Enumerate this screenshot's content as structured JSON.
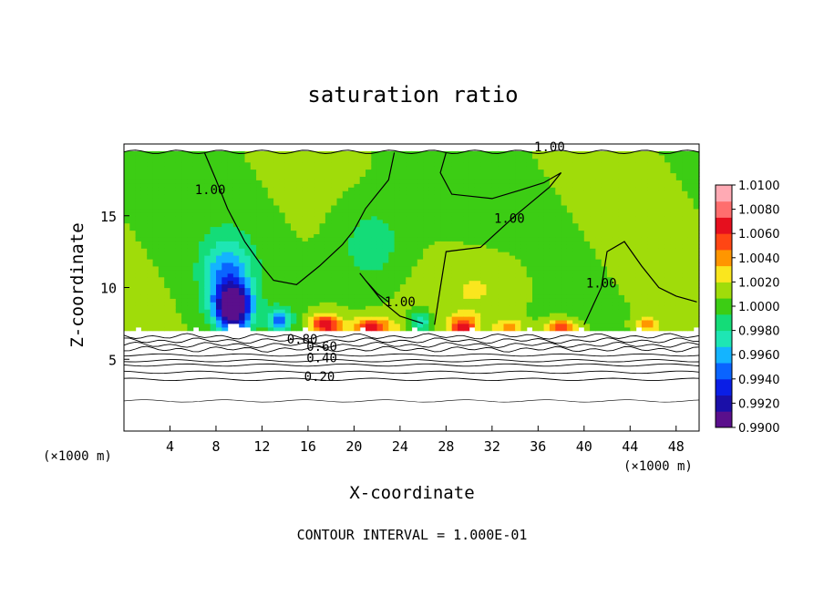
{
  "chart_data": {
    "type": "heatmap",
    "title": "saturation ratio",
    "xlabel": "X-coordinate",
    "ylabel": "Z-coordinate",
    "x_unit": "(×1000 m)",
    "xlim": [
      0,
      50
    ],
    "ylim": [
      0,
      20
    ],
    "x_ticks": [
      4,
      8,
      12,
      16,
      20,
      24,
      28,
      32,
      36,
      40,
      44,
      48
    ],
    "y_ticks": [
      5,
      10,
      15
    ],
    "colorbar": {
      "min": 0.99,
      "max": 1.01,
      "ticks": [
        "1.0100",
        "1.0080",
        "1.0060",
        "1.0040",
        "1.0020",
        "1.0000",
        "0.9980",
        "0.9960",
        "0.9940",
        "0.9920",
        "0.9900"
      ],
      "colors": [
        "#5a0f8c",
        "#1a0fa8",
        "#0a1ee6",
        "#0a64ff",
        "#14b4ff",
        "#1ee6b4",
        "#14dc78",
        "#3ccd14",
        "#a0dc0a",
        "#fae61e",
        "#ff9600",
        "#ff4614",
        "#e60f1e",
        "#ff6e6e",
        "#ffaab4"
      ]
    },
    "contour_interval": "1.000E-01",
    "contour_labels": [
      {
        "text": "1.00",
        "x": 7.5,
        "z": 16.5
      },
      {
        "text": "1.00",
        "x": 37.0,
        "z": 19.5
      },
      {
        "text": "1.00",
        "x": 33.5,
        "z": 14.5
      },
      {
        "text": "1.00",
        "x": 24.0,
        "z": 8.7
      },
      {
        "text": "1.00",
        "x": 41.5,
        "z": 10.0
      },
      {
        "text": "0.80",
        "x": 15.5,
        "z": 6.1
      },
      {
        "text": "0.60",
        "x": 17.2,
        "z": 5.6
      },
      {
        "text": "0.40",
        "x": 17.2,
        "z": 4.8
      },
      {
        "text": "0.20",
        "x": 17.0,
        "z": 3.5
      }
    ],
    "anomalies": [
      {
        "x": 9.5,
        "z": 8.6,
        "value": 0.99,
        "sx": 1.6,
        "sz": 1.6
      },
      {
        "x": 9.0,
        "z": 11.0,
        "value": 0.9955,
        "sx": 2.2,
        "sz": 2.6
      },
      {
        "x": 13.5,
        "z": 7.8,
        "value": 0.995,
        "sx": 1.0,
        "sz": 0.8
      },
      {
        "x": 17.5,
        "z": 7.4,
        "value": 1.007,
        "sx": 1.4,
        "sz": 0.8
      },
      {
        "x": 21.5,
        "z": 7.2,
        "value": 1.0065,
        "sx": 1.8,
        "sz": 0.7
      },
      {
        "x": 25.8,
        "z": 7.6,
        "value": 0.9965,
        "sx": 0.9,
        "sz": 0.8
      },
      {
        "x": 29.5,
        "z": 7.3,
        "value": 1.0065,
        "sx": 1.2,
        "sz": 0.7
      },
      {
        "x": 33.5,
        "z": 7.2,
        "value": 1.004,
        "sx": 1.2,
        "sz": 0.6
      },
      {
        "x": 38.0,
        "z": 7.2,
        "value": 1.0065,
        "sx": 1.4,
        "sz": 0.6
      },
      {
        "x": 45.5,
        "z": 7.4,
        "value": 1.004,
        "sx": 1.0,
        "sz": 0.6
      },
      {
        "x": 21.5,
        "z": 13.0,
        "value": 0.9982,
        "sx": 3.0,
        "sz": 3.0
      },
      {
        "x": 31.0,
        "z": 10.0,
        "value": 1.0022,
        "sx": 4.0,
        "sz": 2.5
      }
    ]
  },
  "footer": {
    "contour_text": "CONTOUR INTERVAL = 1.000E-01"
  }
}
